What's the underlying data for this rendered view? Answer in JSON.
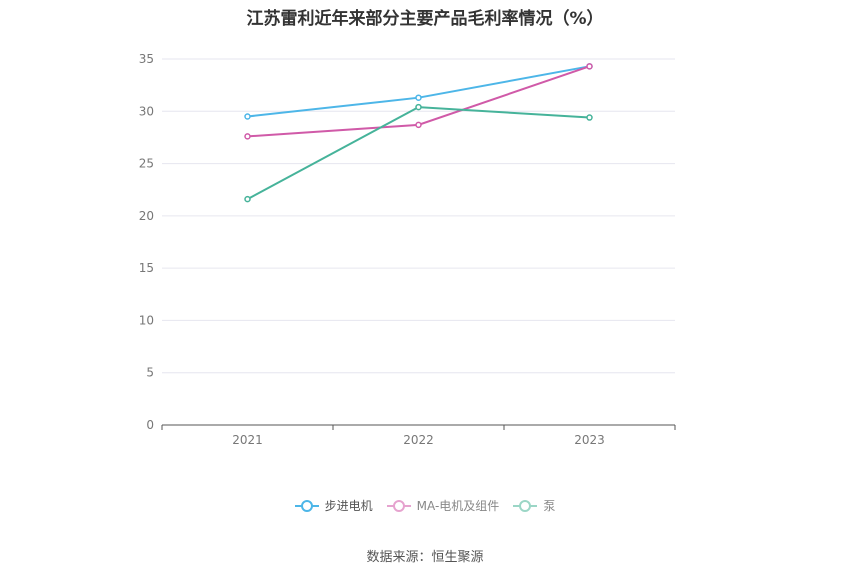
{
  "chart_data": {
    "type": "line",
    "title": "江苏雷利近年来部分主要产品毛利率情况（%）",
    "categories": [
      "2021",
      "2022",
      "2023"
    ],
    "series": [
      {
        "name": "步进电机",
        "color": "#4db6e8",
        "values": [
          29.5,
          31.3,
          34.3
        ]
      },
      {
        "name": "MA-电机及组件",
        "color": "#d05aa8",
        "values": [
          27.6,
          28.7,
          34.3
        ]
      },
      {
        "name": "泵",
        "color": "#46b39a",
        "values": [
          21.6,
          30.4,
          29.4
        ]
      }
    ],
    "ylim": [
      0,
      35
    ],
    "yticks": [
      "0",
      "5",
      "10",
      "15",
      "20",
      "25",
      "30",
      "35"
    ],
    "grid": true,
    "legend_position": "bottom"
  },
  "source": "数据来源：恒生聚源"
}
